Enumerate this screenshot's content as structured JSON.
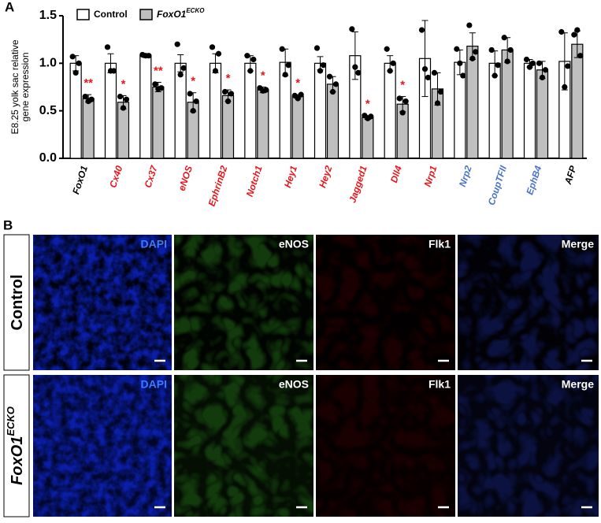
{
  "chart_data": {
    "type": "bar",
    "panel_label": "A",
    "ylabel": [
      "E8.25 yolk sac relative",
      "gene expression"
    ],
    "categories": [
      "FoxO1",
      "Cx40",
      "Cx37",
      "eNOS",
      "EphrinB2",
      "Notch1",
      "Hey1",
      "Hey2",
      "Jagged1",
      "Dll4",
      "Nrp1",
      "Nrp2",
      "CoupTFII",
      "EphB4",
      "AFP"
    ],
    "category_colors": [
      "#000000",
      "#e8141b",
      "#e8141b",
      "#e8141b",
      "#e8141b",
      "#e8141b",
      "#e8141b",
      "#e8141b",
      "#e8141b",
      "#e8141b",
      "#e8141b",
      "#4a72c8",
      "#4a72c8",
      "#4a72c8",
      "#000000"
    ],
    "series": [
      {
        "name": "Control",
        "color": "#ffffff",
        "values": [
          1.0,
          1.0,
          1.08,
          1.0,
          1.0,
          1.0,
          1.01,
          1.0,
          1.08,
          1.0,
          1.05,
          1.01,
          1.0,
          1.0,
          1.02
        ],
        "errors": [
          0.08,
          0.1,
          0.02,
          0.09,
          0.1,
          0.08,
          0.14,
          0.07,
          0.25,
          0.08,
          0.4,
          0.13,
          0.13,
          0.04,
          0.3
        ],
        "points": [
          [
            1.07,
            0.9,
            1.0
          ],
          [
            1.17,
            0.92,
            0.92
          ],
          [
            1.09,
            1.08,
            1.08
          ],
          [
            1.2,
            0.88,
            0.95
          ],
          [
            1.17,
            0.92,
            1.1
          ],
          [
            1.08,
            0.92,
            1.04
          ],
          [
            1.15,
            0.88,
            0.98
          ],
          [
            1.16,
            0.92,
            0.98
          ],
          [
            1.36,
            0.96,
            0.9
          ],
          [
            1.15,
            0.92,
            1.0
          ],
          [
            1.35,
            0.94,
            0.85
          ],
          [
            1.15,
            1.0,
            0.87
          ],
          [
            1.14,
            0.87,
            0.98
          ],
          [
            1.04,
            0.96,
            1.0
          ],
          [
            1.33,
            0.75,
            0.97
          ]
        ]
      },
      {
        "name": "FoxO1",
        "name_sup": "ECKO",
        "color": "#bfbfbf",
        "values": [
          0.63,
          0.59,
          0.75,
          0.59,
          0.66,
          0.72,
          0.65,
          0.78,
          0.43,
          0.57,
          0.73,
          1.18,
          1.14,
          0.93,
          1.2
        ],
        "errors": [
          0.04,
          0.07,
          0.05,
          0.1,
          0.06,
          0.03,
          0.02,
          0.08,
          0.02,
          0.08,
          0.17,
          0.14,
          0.13,
          0.09,
          0.14
        ],
        "points": [
          [
            0.65,
            0.6,
            0.62
          ],
          [
            0.65,
            0.53,
            0.62
          ],
          [
            0.78,
            0.73,
            0.74
          ],
          [
            0.68,
            0.5,
            0.6
          ],
          [
            0.7,
            0.6,
            0.68
          ],
          [
            0.74,
            0.71,
            0.72
          ],
          [
            0.66,
            0.63,
            0.67
          ],
          [
            0.86,
            0.7,
            0.78
          ],
          [
            0.45,
            0.42,
            0.44
          ],
          [
            0.63,
            0.48,
            0.6
          ],
          [
            0.9,
            0.58,
            0.7
          ],
          [
            1.4,
            1.05,
            1.12
          ],
          [
            1.27,
            1.02,
            1.14
          ],
          [
            1.0,
            0.85,
            0.93
          ],
          [
            1.3,
            1.35,
            1.08
          ]
        ]
      }
    ],
    "significance": [
      "**",
      "*",
      "**",
      "*",
      "*",
      "*",
      "*",
      null,
      "*",
      "*",
      null,
      null,
      null,
      null,
      null
    ],
    "significance_color": "#e8141b",
    "ylim": [
      0,
      1.5
    ],
    "yticks": [
      {
        "value": 0,
        "label": "0.0"
      },
      {
        "value": 0.5,
        "label": "0.5"
      },
      {
        "value": 1,
        "label": "1.0"
      },
      {
        "value": 1.5,
        "label": "1.5"
      }
    ]
  },
  "panel_b": {
    "panel_label": "B",
    "columns": [
      "DAPI",
      "eNOS",
      "Flk1",
      "Merge"
    ],
    "rows": [
      {
        "label": "Control"
      },
      {
        "label": "FoxO1",
        "label_sup": "ECKO"
      }
    ]
  }
}
